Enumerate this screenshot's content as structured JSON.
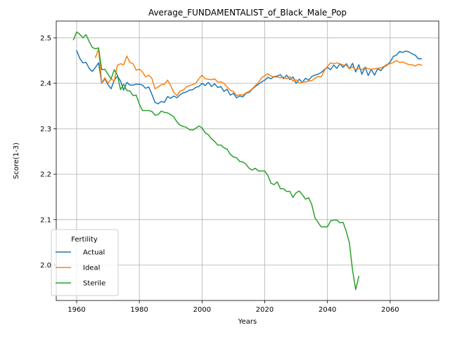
{
  "chart_data": {
    "type": "line",
    "title": "Average_FUNDAMENTALIST_of_Black_Male_Pop",
    "xlabel": "Years",
    "ylabel": "Score(1-3)",
    "xlim": [
      1953.5,
      2075.5
    ],
    "ylim": [
      1.922,
      2.537
    ],
    "x_ticks": [
      1960,
      1980,
      2000,
      2020,
      2040,
      2060
    ],
    "y_ticks": [
      2.0,
      2.1,
      2.2,
      2.3,
      2.4,
      2.5
    ],
    "x_tick_labels": [
      "1960",
      "1980",
      "2000",
      "2020",
      "2040",
      "2060"
    ],
    "y_tick_labels": [
      "2.0",
      "2.1",
      "2.2",
      "2.3",
      "2.4",
      "2.5"
    ],
    "grid": true,
    "legend": {
      "title": "Fertility",
      "position": "lower-left"
    },
    "series": [
      {
        "name": "Actual",
        "color": "#1f77b4",
        "x": [
          1960,
          1961,
          1962,
          1963,
          1964,
          1965,
          1966,
          1967,
          1968,
          1969,
          1970,
          1971,
          1972,
          1973,
          1974,
          1975,
          1976,
          1977,
          1978,
          1979,
          1980,
          1981,
          1982,
          1983,
          1984,
          1985,
          1986,
          1987,
          1988,
          1989,
          1990,
          1991,
          1992,
          1993,
          1994,
          1995,
          1996,
          1997,
          1998,
          1999,
          2000,
          2001,
          2002,
          2003,
          2004,
          2005,
          2006,
          2007,
          2008,
          2009,
          2010,
          2011,
          2012,
          2013,
          2014,
          2015,
          2016,
          2017,
          2018,
          2019,
          2020,
          2021,
          2022,
          2023,
          2024,
          2025,
          2026,
          2027,
          2028,
          2029,
          2030,
          2031,
          2032,
          2033,
          2034,
          2035,
          2036,
          2037,
          2038,
          2039,
          2040,
          2041,
          2042,
          2043,
          2044,
          2045,
          2046,
          2047,
          2048,
          2049,
          2050,
          2051,
          2052,
          2053,
          2054,
          2055,
          2056,
          2057,
          2058,
          2059,
          2060,
          2061,
          2062,
          2063,
          2064,
          2065,
          2066,
          2067,
          2068,
          2069,
          2070
        ],
        "y": [
          2.472,
          2.455,
          2.445,
          2.446,
          2.433,
          2.426,
          2.435,
          2.445,
          2.4,
          2.41,
          2.397,
          2.388,
          2.407,
          2.416,
          2.405,
          2.385,
          2.402,
          2.396,
          2.396,
          2.398,
          2.398,
          2.396,
          2.389,
          2.392,
          2.376,
          2.358,
          2.355,
          2.36,
          2.358,
          2.371,
          2.367,
          2.372,
          2.368,
          2.375,
          2.379,
          2.381,
          2.385,
          2.386,
          2.391,
          2.393,
          2.4,
          2.395,
          2.402,
          2.393,
          2.399,
          2.391,
          2.393,
          2.382,
          2.387,
          2.374,
          2.378,
          2.368,
          2.372,
          2.37,
          2.378,
          2.38,
          2.387,
          2.393,
          2.398,
          2.403,
          2.407,
          2.413,
          2.41,
          2.415,
          2.416,
          2.419,
          2.41,
          2.418,
          2.408,
          2.414,
          2.4,
          2.409,
          2.402,
          2.411,
          2.407,
          2.415,
          2.418,
          2.42,
          2.424,
          2.43,
          2.435,
          2.43,
          2.44,
          2.433,
          2.443,
          2.435,
          2.443,
          2.432,
          2.444,
          2.425,
          2.441,
          2.42,
          2.436,
          2.417,
          2.431,
          2.418,
          2.432,
          2.428,
          2.436,
          2.44,
          2.447,
          2.459,
          2.462,
          2.47,
          2.468,
          2.471,
          2.469,
          2.465,
          2.462,
          2.454,
          2.454
        ]
      },
      {
        "name": "Ideal",
        "color": "#ff7f0e",
        "x": [
          1966,
          1967,
          1968,
          1969,
          1970,
          1971,
          1972,
          1973,
          1974,
          1975,
          1976,
          1977,
          1978,
          1979,
          1980,
          1981,
          1982,
          1983,
          1984,
          1985,
          1986,
          1987,
          1988,
          1989,
          1990,
          1991,
          1992,
          1993,
          1994,
          1995,
          1996,
          1997,
          1998,
          1999,
          2000,
          2001,
          2002,
          2003,
          2004,
          2005,
          2006,
          2007,
          2008,
          2009,
          2010,
          2011,
          2012,
          2013,
          2014,
          2015,
          2016,
          2017,
          2018,
          2019,
          2020,
          2021,
          2022,
          2023,
          2024,
          2025,
          2026,
          2027,
          2028,
          2029,
          2030,
          2031,
          2032,
          2033,
          2034,
          2035,
          2036,
          2037,
          2038,
          2039,
          2040,
          2041,
          2042,
          2043,
          2044,
          2045,
          2046,
          2047,
          2048,
          2049,
          2050,
          2051,
          2052,
          2053,
          2054,
          2055,
          2056,
          2057,
          2058,
          2059,
          2060,
          2061,
          2062,
          2063,
          2064,
          2065,
          2066,
          2067,
          2068,
          2069,
          2070
        ],
        "y": [
          2.457,
          2.475,
          2.401,
          2.412,
          2.4,
          2.41,
          2.405,
          2.44,
          2.443,
          2.441,
          2.46,
          2.446,
          2.443,
          2.429,
          2.431,
          2.425,
          2.414,
          2.418,
          2.411,
          2.388,
          2.392,
          2.397,
          2.398,
          2.407,
          2.395,
          2.38,
          2.373,
          2.383,
          2.385,
          2.392,
          2.395,
          2.397,
          2.4,
          2.41,
          2.418,
          2.41,
          2.409,
          2.408,
          2.41,
          2.403,
          2.403,
          2.4,
          2.392,
          2.385,
          2.382,
          2.373,
          2.375,
          2.374,
          2.379,
          2.382,
          2.388,
          2.395,
          2.402,
          2.412,
          2.417,
          2.421,
          2.416,
          2.414,
          2.414,
          2.412,
          2.414,
          2.41,
          2.415,
          2.405,
          2.408,
          2.4,
          2.403,
          2.403,
          2.405,
          2.406,
          2.411,
          2.415,
          2.414,
          2.428,
          2.437,
          2.445,
          2.443,
          2.445,
          2.443,
          2.44,
          2.44,
          2.432,
          2.436,
          2.43,
          2.432,
          2.43,
          2.435,
          2.432,
          2.431,
          2.432,
          2.433,
          2.434,
          2.437,
          2.442,
          2.443,
          2.446,
          2.45,
          2.446,
          2.447,
          2.444,
          2.441,
          2.441,
          2.438,
          2.442,
          2.44
        ]
      },
      {
        "name": "Sterile",
        "color": "#2ca02c",
        "x": [
          1959,
          1960,
          1961,
          1962,
          1963,
          1964,
          1965,
          1966,
          1967,
          1968,
          1969,
          1970,
          1971,
          1972,
          1973,
          1974,
          1975,
          1976,
          1977,
          1978,
          1979,
          1980,
          1981,
          1982,
          1983,
          1984,
          1985,
          1986,
          1987,
          1988,
          1989,
          1990,
          1991,
          1992,
          1993,
          1994,
          1995,
          1996,
          1997,
          1998,
          1999,
          2000,
          2001,
          2002,
          2003,
          2004,
          2005,
          2006,
          2007,
          2008,
          2009,
          2010,
          2011,
          2012,
          2013,
          2014,
          2015,
          2016,
          2017,
          2018,
          2019,
          2020,
          2021,
          2022,
          2023,
          2024,
          2025,
          2026,
          2027,
          2028,
          2029,
          2030,
          2031,
          2032,
          2033,
          2034,
          2035,
          2036,
          2037,
          2038,
          2039,
          2040,
          2041,
          2042,
          2043,
          2044,
          2045,
          2046,
          2047,
          2048,
          2049,
          2050
        ],
        "y": [
          2.496,
          2.513,
          2.508,
          2.5,
          2.507,
          2.492,
          2.479,
          2.476,
          2.478,
          2.43,
          2.431,
          2.42,
          2.41,
          2.43,
          2.418,
          2.386,
          2.398,
          2.384,
          2.383,
          2.373,
          2.374,
          2.354,
          2.34,
          2.34,
          2.34,
          2.338,
          2.33,
          2.331,
          2.339,
          2.336,
          2.335,
          2.331,
          2.326,
          2.315,
          2.308,
          2.305,
          2.303,
          2.298,
          2.297,
          2.301,
          2.306,
          2.302,
          2.291,
          2.287,
          2.278,
          2.272,
          2.264,
          2.264,
          2.258,
          2.255,
          2.244,
          2.238,
          2.236,
          2.228,
          2.227,
          2.222,
          2.213,
          2.209,
          2.213,
          2.207,
          2.207,
          2.207,
          2.197,
          2.18,
          2.177,
          2.183,
          2.168,
          2.168,
          2.162,
          2.162,
          2.149,
          2.159,
          2.163,
          2.155,
          2.145,
          2.148,
          2.133,
          2.104,
          2.094,
          2.084,
          2.084,
          2.084,
          2.097,
          2.099,
          2.099,
          2.093,
          2.094,
          2.074,
          2.049,
          1.989,
          1.946,
          1.975
        ]
      }
    ]
  }
}
